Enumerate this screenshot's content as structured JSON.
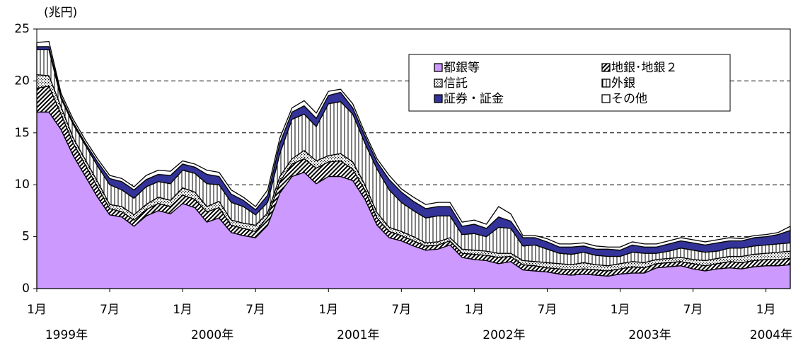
{
  "chart_data": {
    "type": "stacked_area",
    "y_label": "(兆円)",
    "categories": [
      "1月",
      null,
      null,
      null,
      null,
      null,
      "7月",
      null,
      null,
      null,
      null,
      null,
      "1月",
      null,
      null,
      null,
      null,
      null,
      "7月",
      null,
      null,
      null,
      null,
      null,
      "1月",
      null,
      null,
      null,
      null,
      null,
      "7月",
      null,
      null,
      null,
      null,
      null,
      "1月",
      null,
      null,
      null,
      null,
      null,
      "7月",
      null,
      null,
      null,
      null,
      null,
      "1月",
      null,
      null,
      null,
      null,
      null,
      "7月",
      null,
      null,
      null,
      null,
      null,
      "1月",
      null,
      null
    ],
    "years": [
      "1999年",
      "2000年",
      "2001年",
      "2002年",
      "2003年",
      "2004年"
    ],
    "ylim": [
      0,
      25
    ],
    "yticks": [
      0,
      5,
      10,
      15,
      20,
      25
    ],
    "grid": true,
    "series": [
      {
        "name": "都銀等",
        "color": "#cc99ff",
        "values": [
          17,
          17,
          15.3,
          12.8,
          10.8,
          8.8,
          7.1,
          6.9,
          6.0,
          7.0,
          7.5,
          7.2,
          8.2,
          7.8,
          6.4,
          6.8,
          5.4,
          5.1,
          4.9,
          6.1,
          9.2,
          10.8,
          11.2,
          10.1,
          10.8,
          10.8,
          10.4,
          8.6,
          6.1,
          4.9,
          4.6,
          4.1,
          3.7,
          3.8,
          4.2,
          3.0,
          2.8,
          2.7,
          2.4,
          2.6,
          1.8,
          1.7,
          1.6,
          1.4,
          1.3,
          1.4,
          1.3,
          1.2,
          1.4,
          1.5,
          1.5,
          2.0,
          2.1,
          2.2,
          1.9,
          1.7,
          1.9,
          2.0,
          1.9,
          2.1,
          2.2,
          2.2,
          2.3
        ]
      },
      {
        "name": "地銀･地銀２",
        "color": "#000000",
        "pattern": "diagonal",
        "values": [
          2.3,
          2.5,
          1.5,
          1.2,
          1.1,
          1.0,
          0.6,
          0.5,
          0.6,
          0.6,
          0.7,
          0.7,
          0.8,
          0.8,
          1.0,
          1.0,
          0.7,
          0.7,
          0.6,
          0.8,
          1.1,
          1.2,
          1.3,
          1.5,
          1.4,
          1.5,
          1.1,
          0.9,
          0.7,
          0.6,
          0.5,
          0.5,
          0.4,
          0.4,
          0.4,
          0.4,
          0.5,
          0.5,
          0.6,
          0.5,
          0.5,
          0.5,
          0.4,
          0.5,
          0.5,
          0.5,
          0.5,
          0.5,
          0.5,
          0.6,
          0.5,
          0.4,
          0.4,
          0.4,
          0.5,
          0.5,
          0.5,
          0.6,
          0.6,
          0.6,
          0.6,
          0.6,
          0.6
        ]
      },
      {
        "name": "信託",
        "color": "#000000",
        "pattern": "dots",
        "values": [
          1.3,
          1.0,
          0.7,
          0.5,
          0.5,
          0.5,
          0.4,
          0.5,
          0.5,
          0.5,
          0.6,
          0.6,
          0.7,
          0.7,
          0.5,
          0.6,
          0.5,
          0.5,
          0.6,
          0.4,
          0.5,
          0.5,
          0.8,
          0.7,
          0.6,
          0.7,
          0.7,
          0.5,
          0.5,
          0.4,
          0.4,
          0.4,
          0.3,
          0.3,
          0.3,
          0.4,
          0.4,
          0.4,
          0.4,
          0.3,
          0.4,
          0.4,
          0.5,
          0.5,
          0.5,
          0.6,
          0.5,
          0.5,
          0.5,
          0.5,
          0.5,
          0.4,
          0.4,
          0.4,
          0.4,
          0.5,
          0.5,
          0.5,
          0.6,
          0.6,
          0.6,
          0.7,
          0.7
        ]
      },
      {
        "name": "外銀",
        "color": "#000000",
        "pattern": "vertical",
        "values": [
          2.4,
          2.5,
          0.8,
          1.3,
          1.4,
          1.5,
          1.9,
          1.6,
          1.6,
          1.7,
          1.5,
          1.6,
          1.7,
          1.8,
          2.2,
          1.6,
          1.7,
          1.6,
          1.0,
          1.0,
          2.2,
          3.8,
          3.5,
          3.3,
          5.0,
          5.0,
          4.6,
          4.0,
          4.2,
          3.6,
          2.8,
          2.5,
          2.4,
          2.5,
          2.1,
          1.4,
          1.6,
          1.4,
          2.5,
          2.4,
          1.4,
          1.6,
          1.3,
          1.0,
          1.0,
          1.0,
          0.9,
          0.9,
          0.7,
          0.9,
          0.9,
          0.6,
          0.7,
          0.9,
          0.9,
          0.8,
          0.7,
          0.8,
          0.8,
          0.8,
          0.8,
          0.8,
          0.8
        ]
      },
      {
        "name": "証券・証金",
        "color": "#333399",
        "values": [
          0.3,
          0.3,
          0.2,
          0.2,
          0.2,
          0.4,
          0.6,
          0.8,
          0.8,
          0.7,
          0.7,
          0.8,
          0.6,
          0.6,
          0.9,
          0.8,
          0.8,
          0.6,
          0.5,
          0.7,
          1.0,
          0.7,
          0.8,
          0.8,
          0.8,
          0.9,
          0.6,
          0.7,
          0.7,
          1.0,
          1.0,
          0.9,
          0.9,
          0.9,
          0.9,
          0.8,
          0.9,
          0.8,
          1.0,
          0.7,
          0.8,
          0.7,
          0.7,
          0.6,
          0.7,
          0.6,
          0.6,
          0.7,
          0.6,
          0.7,
          0.6,
          0.6,
          0.7,
          0.7,
          0.7,
          0.7,
          0.8,
          0.7,
          0.7,
          0.8,
          0.8,
          0.9,
          1.2
        ]
      },
      {
        "name": "その他",
        "color": "#ffffff",
        "values": [
          0.4,
          0.5,
          0.3,
          0.3,
          0.3,
          0.3,
          0.3,
          0.3,
          0.3,
          0.4,
          0.4,
          0.4,
          0.3,
          0.3,
          0.4,
          0.4,
          0.4,
          0.3,
          0.3,
          0.5,
          0.5,
          0.4,
          0.5,
          0.5,
          0.4,
          0.3,
          0.4,
          0.3,
          0.3,
          0.4,
          0.3,
          0.4,
          0.4,
          0.4,
          0.4,
          0.4,
          0.4,
          0.4,
          1.0,
          0.7,
          0.2,
          0.2,
          0.3,
          0.3,
          0.3,
          0.3,
          0.3,
          0.2,
          0.3,
          0.3,
          0.3,
          0.3,
          0.3,
          0.3,
          0.3,
          0.3,
          0.3,
          0.3,
          0.2,
          0.2,
          0.2,
          0.2,
          0.4
        ]
      }
    ]
  }
}
